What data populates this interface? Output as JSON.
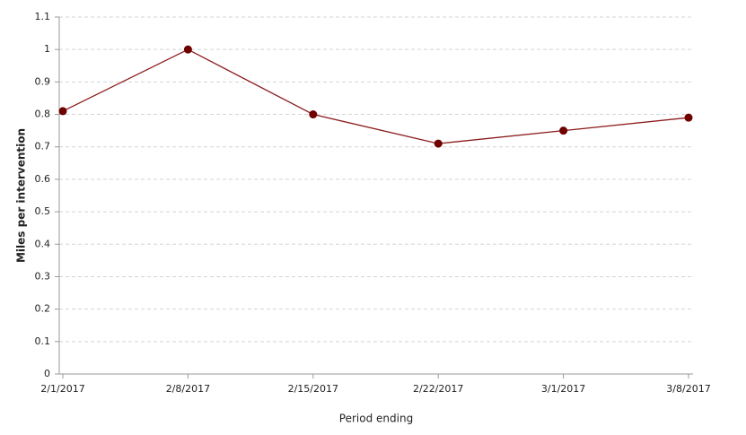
{
  "chart_data": {
    "type": "line",
    "x_label": "Period ending",
    "y_label": "Miles per intervention",
    "categories": [
      "2/1/2017",
      "2/8/2017",
      "2/15/2017",
      "2/22/2017",
      "3/1/2017",
      "3/8/2017"
    ],
    "values": [
      0.81,
      1.0,
      0.8,
      0.71,
      0.75,
      0.79
    ],
    "color": "#8b1a1a",
    "marker_color": "#6e0000",
    "ylim": [
      0,
      1.1
    ],
    "yticks": [
      0,
      0.1,
      0.2,
      0.3,
      0.4,
      0.5,
      0.6,
      0.7,
      0.8,
      0.9,
      1,
      1.1
    ],
    "grid": true
  }
}
